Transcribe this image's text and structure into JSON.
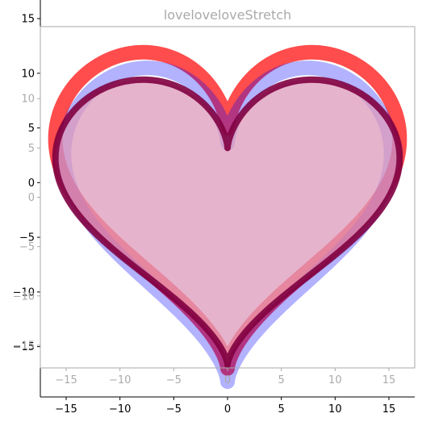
{
  "chart_data": [
    {
      "type": "line",
      "title": "",
      "xlabel": "",
      "ylabel": "",
      "xlim": [
        -17.4,
        17.4
      ],
      "ylim": [
        -19.6,
        16.7
      ],
      "xticks": [
        -15,
        -10,
        -5,
        0,
        5,
        10,
        15
      ],
      "yticks": [
        -15,
        -10,
        -5,
        0,
        5,
        10,
        15
      ],
      "grid": false,
      "series": [
        {
          "shape": "heart",
          "scale_x": 1.0,
          "scale_y": 1.0,
          "color": "#ff0000",
          "alpha": 0.7,
          "linewidth": 18,
          "fill": "none"
        }
      ]
    },
    {
      "type": "line",
      "title": "loveloveloveStretch",
      "xlabel": "",
      "ylabel": "",
      "xlim": [
        -17.4,
        17.4
      ],
      "ylim": [
        -17.3,
        17.3
      ],
      "xticks": [
        -15,
        -10,
        -5,
        0,
        5,
        10,
        15
      ],
      "yticks": [
        -15,
        -10,
        -5,
        0,
        5,
        10
      ],
      "grid": false,
      "text_color": "#aaaaaa",
      "series": [
        {
          "shape": "heart",
          "scale_x": 0.95,
          "scale_y": 1.1,
          "color": "#0000ff",
          "alpha": 0.3,
          "linewidth": 18,
          "fill": "none"
        },
        {
          "shape": "heart",
          "scale_x": 1.0,
          "scale_y": 1.0,
          "color": "#800040",
          "alpha": 0.9,
          "linewidth": 8,
          "fill": "#dd99bb",
          "fill_alpha": 0.75
        }
      ]
    }
  ]
}
